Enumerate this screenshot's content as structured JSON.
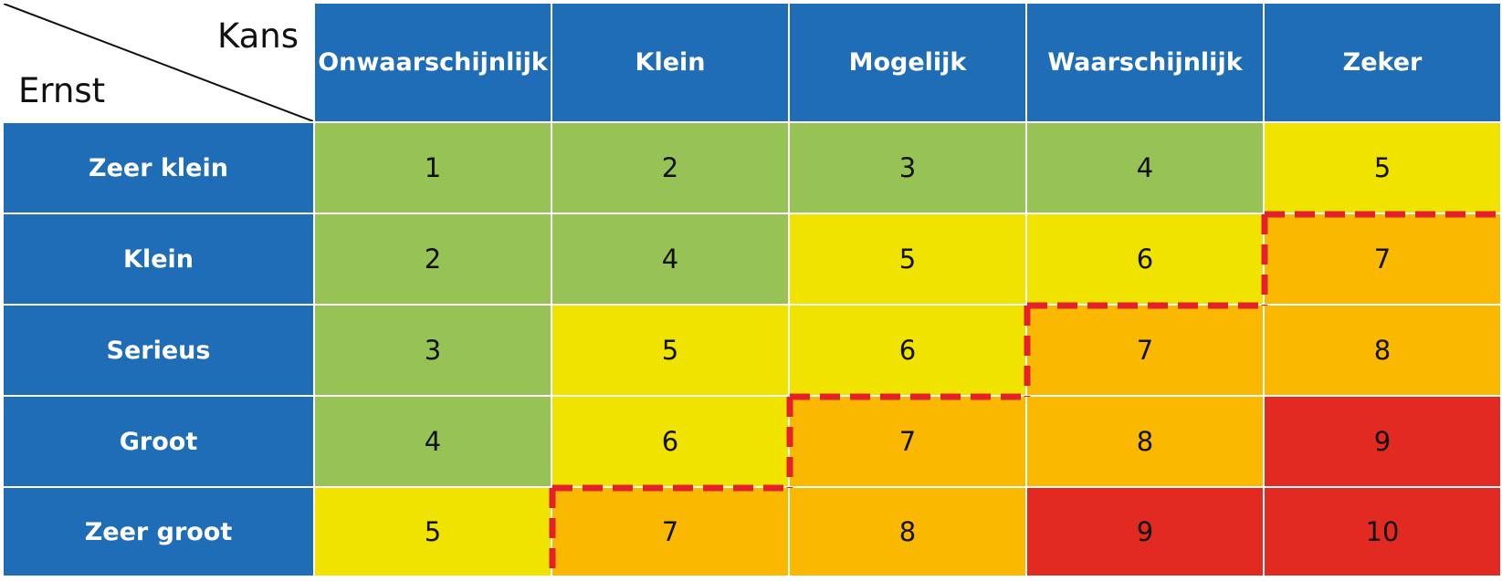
{
  "chart_data": {
    "type": "heatmap",
    "corner": {
      "column_axis_label": "Kans",
      "row_axis_label": "Ernst"
    },
    "columns": [
      "Onwaarschijnlijk",
      "Klein",
      "Mogelijk",
      "Waarschijnlijk",
      "Zeker"
    ],
    "rows": [
      "Zeer klein",
      "Klein",
      "Serieus",
      "Groot",
      "Zeer groot"
    ],
    "values": [
      [
        1,
        2,
        3,
        4,
        5
      ],
      [
        2,
        4,
        5,
        6,
        7
      ],
      [
        3,
        5,
        6,
        7,
        8
      ],
      [
        4,
        6,
        7,
        8,
        9
      ],
      [
        5,
        7,
        8,
        9,
        10
      ]
    ],
    "colors": {
      "header": "#1f6db6",
      "grid": "#ffffff",
      "level_1_4": "#96c256",
      "level_5_6": "#f0e300",
      "level_7_8": "#fbb800",
      "level_9_10": "#e22a22",
      "risk_boundary": "#e4202a"
    }
  }
}
